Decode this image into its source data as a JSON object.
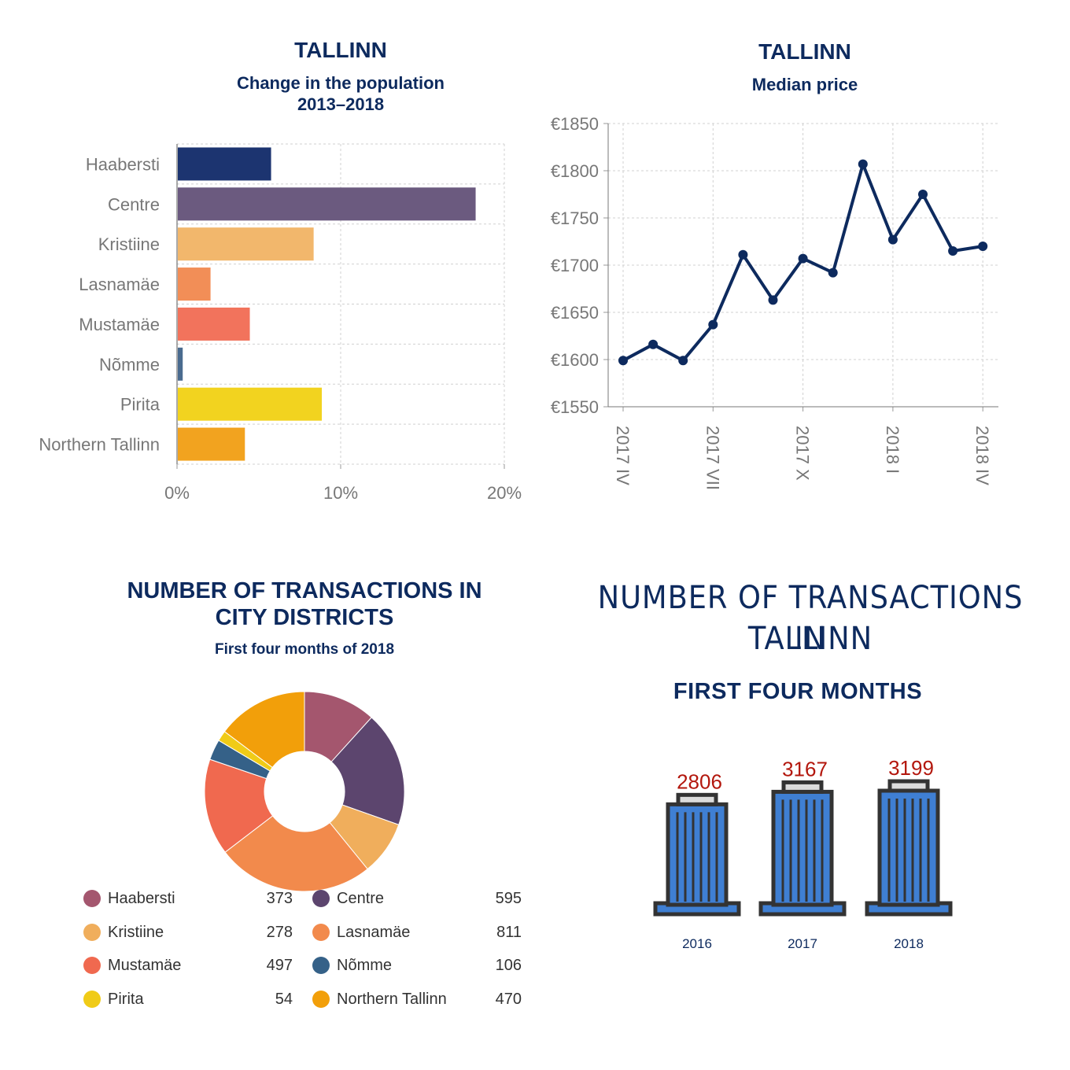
{
  "colors": {
    "navy": "#0d2a5e",
    "grid": "#d0d0d0",
    "axis_text": "#777777",
    "building_fill": "#3f7fd3",
    "building_outline": "#333333",
    "value_red": "#b3170d"
  },
  "panel1": {
    "title": "TALLINN",
    "subtitle_line1": "Change in the population",
    "subtitle_line2": "2013–2018"
  },
  "panel2": {
    "title": "TALLINN",
    "subtitle": "Median price"
  },
  "panel3": {
    "title_line1": "NUMBER OF TRANSACTIONS IN",
    "title_line2": "CITY DISTRICTS",
    "subtitle": "First four months of 2018"
  },
  "panel4": {
    "title_line1": "NUMBER OF TRANSACTIONS IN",
    "title_line2": "TALLINN",
    "subtitle": "FIRST FOUR MONTHS"
  },
  "chart_data": [
    {
      "type": "bar",
      "orientation": "horizontal",
      "title": "TALLINN",
      "subtitle": "Change in the population 2013–2018",
      "categories": [
        "Haabersti",
        "Centre",
        "Kristiine",
        "Lasnamäe",
        "Mustamäe",
        "Nõmme",
        "Pirita",
        "Northern Tallinn"
      ],
      "values": [
        5.7,
        18.2,
        8.3,
        2.0,
        4.4,
        0.3,
        8.8,
        4.1
      ],
      "colors": [
        "#1c3470",
        "#6b5a7f",
        "#f2b76c",
        "#f28e57",
        "#f2735c",
        "#4a6b8f",
        "#f2d31f",
        "#f2a31f"
      ],
      "xlim": [
        0,
        20
      ],
      "xticks": [
        "0%",
        "10%",
        "20%"
      ],
      "grid": true
    },
    {
      "type": "line",
      "title": "TALLINN",
      "subtitle": "Median price",
      "x_ticks": [
        "2017 IV",
        "2017 VII",
        "2017 X",
        "2018 I",
        "2018 IV"
      ],
      "values": [
        1599,
        1616,
        1599,
        1637,
        1711,
        1663,
        1707,
        1692,
        1807,
        1727,
        1775,
        1715,
        1720
      ],
      "ylim": [
        1550,
        1850
      ],
      "yticks": [
        "€1550",
        "€1600",
        "€1650",
        "€1700",
        "€1750",
        "€1800",
        "€1850"
      ],
      "color": "#0d2a5e",
      "grid": true
    },
    {
      "type": "pie",
      "donut": true,
      "title": "NUMBER OF TRANSACTIONS IN CITY DISTRICTS",
      "subtitle": "First four months of 2018",
      "slices": [
        {
          "label": "Haabersti",
          "value": 373,
          "color": "#a4566e"
        },
        {
          "label": "Centre",
          "value": 595,
          "color": "#5c456e"
        },
        {
          "label": "Kristiine",
          "value": 278,
          "color": "#f0ae5c"
        },
        {
          "label": "Lasnamäe",
          "value": 811,
          "color": "#f28a4c"
        },
        {
          "label": "Mustamäe",
          "value": 497,
          "color": "#f0694f"
        },
        {
          "label": "Nõmme",
          "value": 106,
          "color": "#356188"
        },
        {
          "label": "Pirita",
          "value": 54,
          "color": "#f0cb17"
        },
        {
          "label": "Northern Tallinn",
          "value": 470,
          "color": "#f29f0a"
        }
      ],
      "legend_placement": "bottom"
    },
    {
      "type": "bar",
      "style": "pictogram",
      "title": "NUMBER OF TRANSACTIONS IN TALLINN",
      "subtitle": "FIRST FOUR MONTHS",
      "categories": [
        "2016",
        "2017",
        "2018"
      ],
      "values": [
        2806,
        3167,
        3199
      ]
    }
  ]
}
